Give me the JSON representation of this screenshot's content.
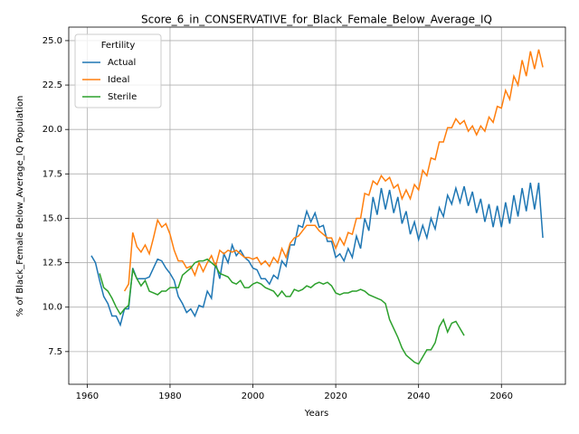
{
  "chart_data": {
    "type": "line",
    "title": "Score_6_in_CONSERVATIVE_for_Black_Female_Below_Average_IQ",
    "x_label": "Years",
    "y_label": "% of Black_Female Below_Average_IQ Population",
    "legend_title": "Fertility",
    "legend_position": "upper left",
    "grid": true,
    "xlim": [
      1955.55,
      2075.45
    ],
    "ylim": [
      5.66,
      25.76
    ],
    "xticks": [
      1960,
      1980,
      2000,
      2020,
      2040,
      2060
    ],
    "yticks": [
      7.5,
      {
        "value": 10,
        "label": "10.0"
      },
      12.5,
      {
        "value": 15,
        "label": "15.0"
      },
      17.5,
      {
        "value": 20,
        "label": "20.0"
      },
      22.5,
      {
        "value": 25,
        "label": "25.0"
      }
    ],
    "x": [
      1961,
      1962,
      1963,
      1964,
      1965,
      1966,
      1967,
      1968,
      1969,
      1970,
      1971,
      1972,
      1973,
      1974,
      1975,
      1976,
      1977,
      1978,
      1979,
      1980,
      1981,
      1982,
      1983,
      1984,
      1985,
      1986,
      1987,
      1988,
      1989,
      1990,
      1991,
      1992,
      1993,
      1994,
      1995,
      1996,
      1997,
      1998,
      1999,
      2000,
      2001,
      2002,
      2003,
      2004,
      2005,
      2006,
      2007,
      2008,
      2009,
      2010,
      2011,
      2012,
      2013,
      2014,
      2015,
      2016,
      2017,
      2018,
      2019,
      2020,
      2021,
      2022,
      2023,
      2024,
      2025,
      2026,
      2027,
      2028,
      2029,
      2030,
      2031,
      2032,
      2033,
      2034,
      2035,
      2036,
      2037,
      2038,
      2039,
      2040,
      2041,
      2042,
      2043,
      2044,
      2045,
      2046,
      2047,
      2048,
      2049,
      2050,
      2051,
      2052,
      2053,
      2054,
      2055,
      2056,
      2057,
      2058,
      2059,
      2060,
      2061,
      2062,
      2063,
      2064,
      2065,
      2066,
      2067,
      2068,
      2069,
      2070
    ],
    "series": [
      {
        "name": "Actual",
        "color": "#1f77b4",
        "values": [
          12.9,
          12.5,
          11.5,
          10.6,
          10.2,
          9.5,
          9.5,
          9.0,
          9.9,
          9.9,
          12.2,
          11.6,
          11.6,
          11.6,
          11.7,
          12.2,
          12.7,
          12.6,
          12.2,
          11.9,
          11.5,
          10.6,
          10.2,
          9.7,
          9.9,
          9.5,
          10.1,
          10.0,
          10.9,
          10.5,
          12.5,
          11.6,
          13.0,
          12.5,
          13.5,
          12.9,
          13.2,
          12.8,
          12.6,
          12.2,
          12.1,
          11.6,
          11.6,
          11.3,
          11.8,
          11.6,
          12.6,
          12.3,
          13.5,
          13.5,
          14.6,
          14.5,
          15.4,
          14.8,
          15.3,
          14.5,
          14.6,
          13.7,
          13.7,
          12.8,
          13.0,
          12.6,
          13.3,
          12.8,
          14.0,
          13.3,
          15.0,
          14.3,
          16.2,
          15.2,
          16.7,
          15.5,
          16.6,
          15.3,
          16.2,
          14.7,
          15.4,
          14.1,
          14.8,
          13.8,
          14.6,
          13.9,
          15.0,
          14.4,
          15.6,
          15.1,
          16.3,
          15.8,
          16.7,
          15.9,
          16.8,
          15.7,
          16.5,
          15.3,
          16.1,
          14.8,
          15.8,
          14.5,
          15.7,
          14.5,
          15.9,
          14.7,
          16.3,
          15.1,
          16.7,
          15.4,
          17.0,
          15.5,
          17.0,
          13.9
        ]
      },
      {
        "name": "Ideal",
        "color": "#ff7f0e",
        "values": [
          null,
          null,
          null,
          null,
          null,
          null,
          null,
          null,
          10.9,
          11.3,
          14.2,
          13.4,
          13.1,
          13.5,
          13.0,
          13.9,
          14.9,
          14.5,
          14.7,
          14.1,
          13.2,
          12.6,
          12.6,
          12.2,
          12.3,
          11.8,
          12.5,
          12.0,
          12.5,
          12.9,
          12.3,
          13.2,
          13.0,
          13.2,
          13.1,
          13.2,
          13.0,
          12.8,
          12.8,
          12.7,
          12.8,
          12.4,
          12.6,
          12.3,
          12.8,
          12.5,
          13.3,
          12.8,
          13.6,
          13.9,
          14.0,
          14.3,
          14.6,
          14.6,
          14.6,
          14.3,
          14.1,
          13.9,
          13.9,
          13.3,
          13.9,
          13.5,
          14.2,
          14.1,
          15.0,
          15.0,
          16.4,
          16.3,
          17.1,
          16.9,
          17.4,
          17.1,
          17.3,
          16.7,
          16.9,
          16.1,
          16.6,
          16.1,
          16.9,
          16.6,
          17.7,
          17.4,
          18.4,
          18.3,
          19.3,
          19.3,
          20.1,
          20.1,
          20.6,
          20.3,
          20.5,
          19.9,
          20.2,
          19.7,
          20.2,
          19.9,
          20.7,
          20.4,
          21.3,
          21.2,
          22.2,
          21.7,
          23.0,
          22.5,
          23.9,
          23.0,
          24.4,
          23.4,
          24.5,
          23.5
        ]
      },
      {
        "name": "Sterile",
        "color": "#2ca02c",
        "values": [
          null,
          null,
          11.9,
          11.1,
          10.9,
          10.5,
          10.0,
          9.6,
          9.9,
          10.1,
          12.1,
          11.6,
          11.2,
          11.5,
          10.9,
          10.8,
          10.7,
          10.9,
          10.9,
          11.1,
          11.1,
          11.1,
          11.8,
          12.0,
          12.2,
          12.5,
          12.6,
          12.6,
          12.7,
          12.5,
          12.3,
          11.9,
          11.8,
          11.7,
          11.4,
          11.3,
          11.5,
          11.1,
          11.1,
          11.3,
          11.4,
          11.3,
          11.1,
          11.0,
          10.9,
          10.6,
          10.9,
          10.6,
          10.6,
          11.0,
          10.9,
          11.0,
          11.2,
          11.1,
          11.3,
          11.4,
          11.3,
          11.4,
          11.2,
          10.8,
          10.7,
          10.8,
          10.8,
          10.9,
          10.9,
          11.0,
          10.9,
          10.7,
          10.6,
          10.5,
          10.4,
          10.2,
          9.3,
          8.8,
          8.3,
          7.7,
          7.3,
          7.1,
          6.9,
          6.8,
          7.2,
          7.6,
          7.6,
          8.0,
          8.9,
          9.3,
          8.6,
          9.1,
          9.2,
          8.8,
          8.4,
          null,
          null,
          null,
          null,
          null,
          null,
          null,
          null,
          null,
          null,
          null,
          null,
          null,
          null,
          null,
          null,
          null,
          null,
          null
        ]
      }
    ]
  }
}
